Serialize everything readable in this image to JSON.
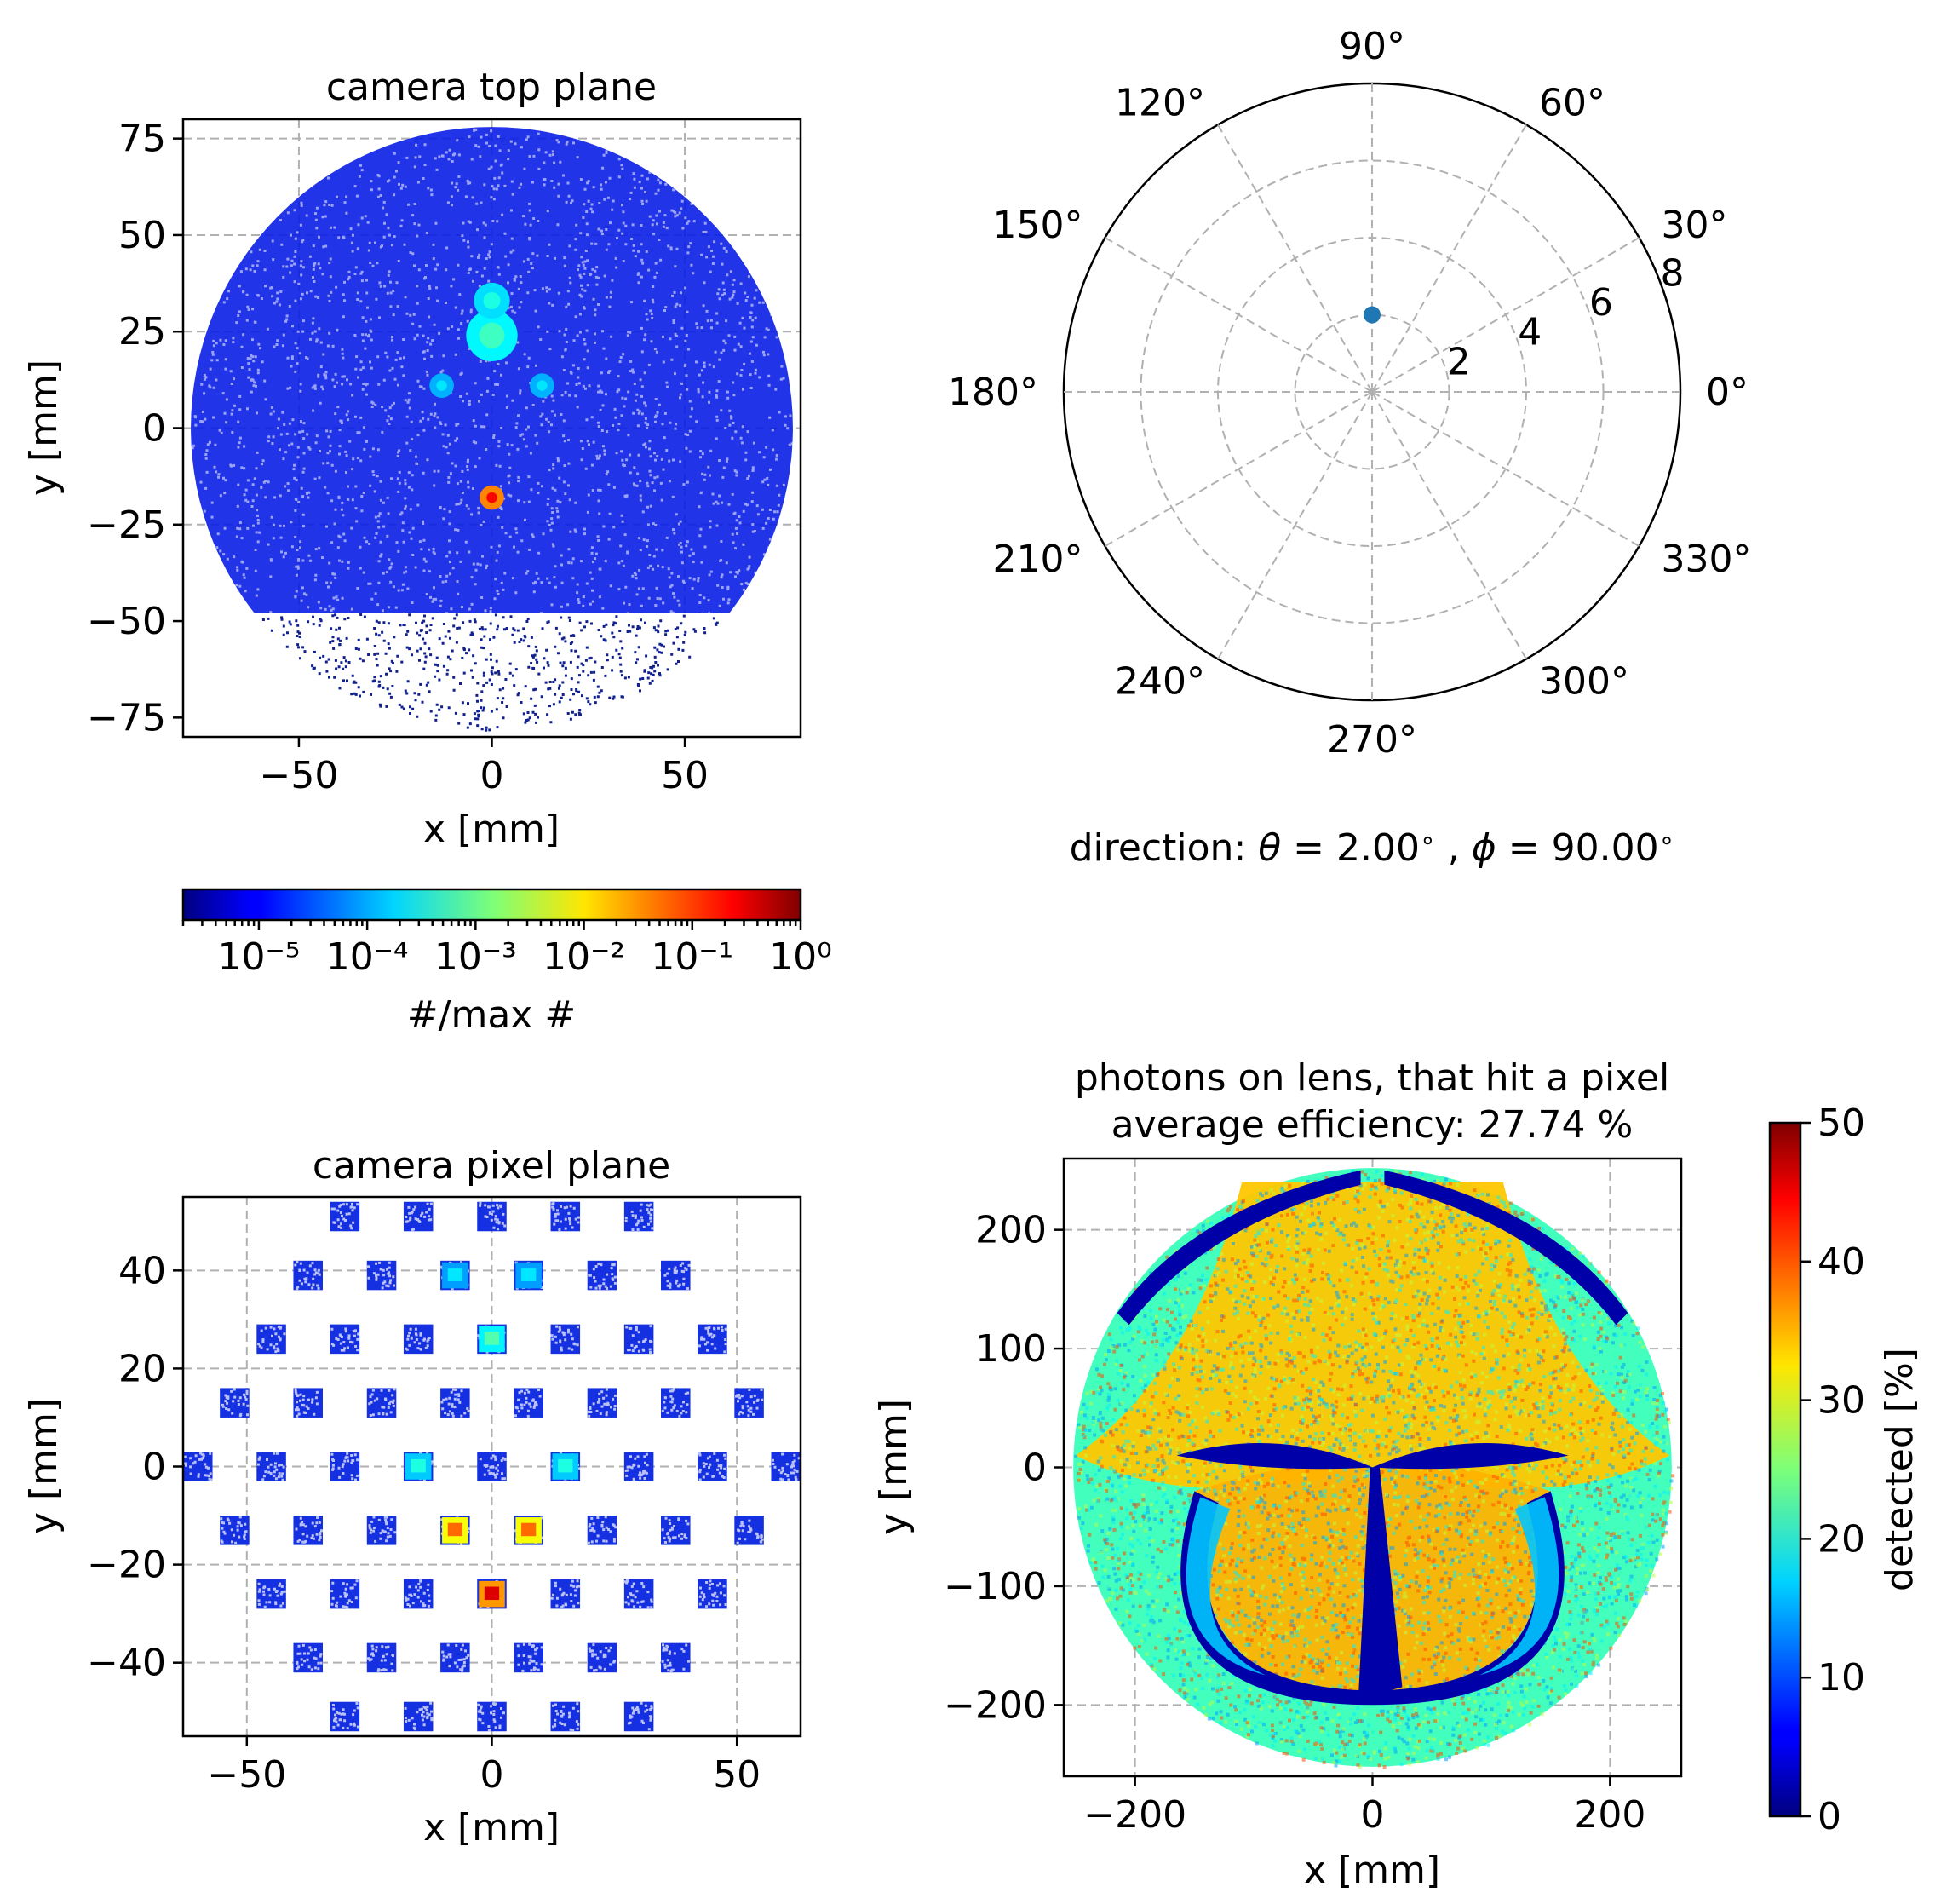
{
  "chart_data": [
    {
      "id": "top-plane",
      "type": "heatmap",
      "title": "camera top plane",
      "xlabel": "x [mm]",
      "ylabel": "y [mm]",
      "xlim": [
        -80,
        80
      ],
      "ylim": [
        -80,
        80
      ],
      "xticks": [
        {
          "v": -50,
          "t": "−50"
        },
        {
          "v": 0,
          "t": "0"
        },
        {
          "v": 50,
          "t": "50"
        }
      ],
      "yticks": [
        {
          "v": -75,
          "t": "−75"
        },
        {
          "v": -50,
          "t": "−50"
        },
        {
          "v": -25,
          "t": "−25"
        },
        {
          "v": 0,
          "t": "0"
        },
        {
          "v": 25,
          "t": "25"
        },
        {
          "v": 50,
          "t": "50"
        },
        {
          "v": 75,
          "t": "75"
        }
      ],
      "grid": true,
      "disk": {
        "center": [
          0,
          0
        ],
        "radius": 78
      },
      "hotspots": [
        {
          "x": 0,
          "y": 24,
          "r": 6,
          "level": 0.0006
        },
        {
          "x": 0,
          "y": 33,
          "r": 4,
          "level": 0.0004
        },
        {
          "x": -13,
          "y": 11,
          "r": 2.5,
          "level": 0.0002
        },
        {
          "x": 13,
          "y": 11,
          "r": 2.5,
          "level": 0.0002
        },
        {
          "x": 0,
          "y": -18,
          "r": 2.5,
          "level": 0.2
        }
      ],
      "colorbar": {
        "label": "#/max #",
        "scale": "log",
        "range": [
          2e-06,
          1
        ],
        "ticks": [
          {
            "v": 1e-05,
            "t": "10⁻⁵"
          },
          {
            "v": 0.0001,
            "t": "10⁻⁴"
          },
          {
            "v": 0.001,
            "t": "10⁻³"
          },
          {
            "v": 0.01,
            "t": "10⁻²"
          },
          {
            "v": 0.1,
            "t": "10⁻¹"
          },
          {
            "v": 1,
            "t": "10⁰"
          }
        ]
      }
    },
    {
      "id": "direction-polar",
      "type": "scatter",
      "projection": "polar",
      "rlim": [
        0,
        8
      ],
      "rticks": [
        {
          "v": 2,
          "t": "2"
        },
        {
          "v": 4,
          "t": "4"
        },
        {
          "v": 6,
          "t": "6"
        },
        {
          "v": 8,
          "t": "8"
        }
      ],
      "angle_ticks": [
        {
          "v": 0,
          "t": "0°"
        },
        {
          "v": 30,
          "t": "30°"
        },
        {
          "v": 60,
          "t": "60°"
        },
        {
          "v": 90,
          "t": "90°"
        },
        {
          "v": 120,
          "t": "120°"
        },
        {
          "v": 150,
          "t": "150°"
        },
        {
          "v": 180,
          "t": "180°"
        },
        {
          "v": 210,
          "t": "210°"
        },
        {
          "v": 240,
          "t": "240°"
        },
        {
          "v": 270,
          "t": "270°"
        },
        {
          "v": 300,
          "t": "300°"
        },
        {
          "v": 330,
          "t": "330°"
        }
      ],
      "points": [
        {
          "theta_deg": 90,
          "r": 2
        }
      ],
      "point_color": "#1f77b4",
      "caption": {
        "prefix": "direction: ",
        "theta_symbol": "θ",
        "theta_value": " = 2.00",
        "sep": " , ",
        "phi_symbol": "ϕ",
        "phi_value": " = 90.00",
        "degree": "∘"
      }
    },
    {
      "id": "pixel-plane",
      "type": "heatmap",
      "title": "camera pixel plane",
      "xlabel": "x [mm]",
      "ylabel": "y [mm]",
      "xlim": [
        -63,
        63
      ],
      "ylim": [
        -55,
        55
      ],
      "xticks": [
        {
          "v": -50,
          "t": "−50"
        },
        {
          "v": 0,
          "t": "0"
        },
        {
          "v": 50,
          "t": "50"
        }
      ],
      "yticks": [
        {
          "v": -40,
          "t": "−40"
        },
        {
          "v": -20,
          "t": "−20"
        },
        {
          "v": 0,
          "t": "0"
        },
        {
          "v": 20,
          "t": "20"
        },
        {
          "v": 40,
          "t": "40"
        }
      ],
      "grid": true,
      "pixel_size_mm": 6,
      "rows": [
        {
          "y": 51,
          "x": [
            -30,
            -15,
            0,
            15,
            30
          ]
        },
        {
          "y": 39,
          "x": [
            -37.5,
            -22.5,
            -7.5,
            7.5,
            22.5,
            37.5
          ]
        },
        {
          "y": 26,
          "x": [
            -45,
            -30,
            -15,
            0,
            15,
            30,
            45
          ]
        },
        {
          "y": 13,
          "x": [
            -52.5,
            -37.5,
            -22.5,
            -7.5,
            7.5,
            22.5,
            37.5,
            52.5
          ]
        },
        {
          "y": 0,
          "x": [
            -60,
            -45,
            -30,
            -15,
            0,
            15,
            30,
            45,
            60
          ]
        },
        {
          "y": -13,
          "x": [
            -52.5,
            -37.5,
            -22.5,
            -7.5,
            7.5,
            22.5,
            37.5,
            52.5
          ]
        },
        {
          "y": -26,
          "x": [
            -45,
            -30,
            -15,
            0,
            15,
            30,
            45
          ]
        },
        {
          "y": -39,
          "x": [
            -37.5,
            -22.5,
            -7.5,
            7.5,
            22.5,
            37.5
          ]
        },
        {
          "y": -51,
          "x": [
            -30,
            -15,
            0,
            15,
            30
          ]
        }
      ],
      "bright_pixels": [
        {
          "x": 0,
          "y": 26,
          "level": 0.0008
        },
        {
          "x": -7.5,
          "y": -13,
          "level": 0.05
        },
        {
          "x": 7.5,
          "y": -13,
          "level": 0.05
        },
        {
          "x": 0,
          "y": -26,
          "level": 0.3
        },
        {
          "x": -7.5,
          "y": 39,
          "level": 0.0002
        },
        {
          "x": 7.5,
          "y": 39,
          "level": 0.0002
        },
        {
          "x": -15,
          "y": 0,
          "level": 0.0004
        },
        {
          "x": 15,
          "y": 0,
          "level": 0.0004
        }
      ]
    },
    {
      "id": "lens-efficiency",
      "type": "heatmap",
      "title": "photons on lens, that hit a pixel",
      "subtitle": "average efficiency: 27.74 %",
      "xlabel": "x [mm]",
      "ylabel": "y [mm]",
      "xlim": [
        -260,
        260
      ],
      "ylim": [
        -260,
        260
      ],
      "xticks": [
        {
          "v": -200,
          "t": "−200"
        },
        {
          "v": 0,
          "t": "0"
        },
        {
          "v": 200,
          "t": "200"
        }
      ],
      "yticks": [
        {
          "v": -200,
          "t": "−200"
        },
        {
          "v": -100,
          "t": "−100"
        },
        {
          "v": 0,
          "t": "0"
        },
        {
          "v": 100,
          "t": "100"
        },
        {
          "v": 200,
          "t": "200"
        }
      ],
      "grid": true,
      "disk": {
        "center": [
          0,
          0
        ],
        "radius": 252
      },
      "average_efficiency_percent": 27.74,
      "colorbar": {
        "label": "detected [%]",
        "scale": "linear",
        "range": [
          0,
          50
        ],
        "ticks": [
          {
            "v": 0,
            "t": "0"
          },
          {
            "v": 10,
            "t": "10"
          },
          {
            "v": 20,
            "t": "20"
          },
          {
            "v": 30,
            "t": "30"
          },
          {
            "v": 40,
            "t": "40"
          },
          {
            "v": 50,
            "t": "50"
          }
        ]
      }
    }
  ]
}
